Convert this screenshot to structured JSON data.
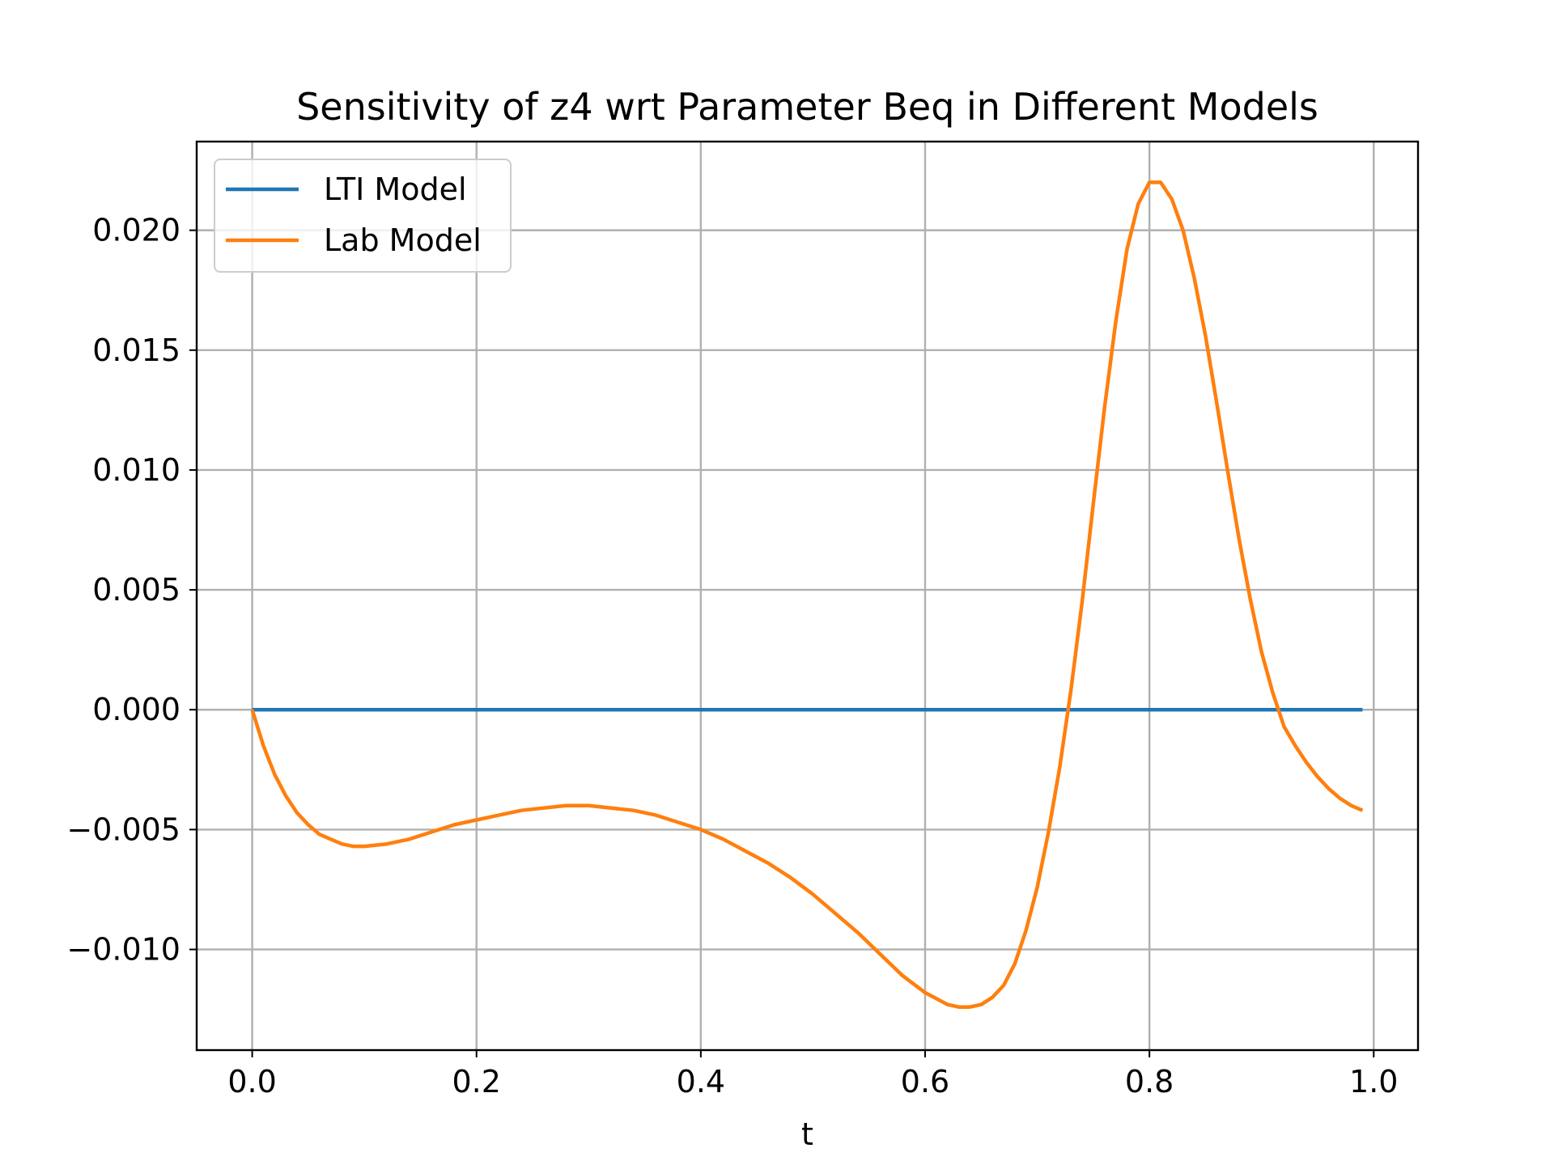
{
  "chart_data": {
    "type": "line",
    "title": "Sensitivity of z4 wrt Parameter Beq in Different Models",
    "xlabel": "t",
    "ylabel": "",
    "xlim": [
      -0.0495,
      1.0395
    ],
    "ylim": [
      -0.0142,
      0.0237
    ],
    "xticks": [
      0.0,
      0.2,
      0.4,
      0.6,
      0.8,
      1.0
    ],
    "xtick_labels": [
      "0.0",
      "0.2",
      "0.4",
      "0.6",
      "0.8",
      "1.0"
    ],
    "yticks": [
      -0.01,
      -0.005,
      0.0,
      0.005,
      0.01,
      0.015,
      0.02
    ],
    "ytick_labels": [
      "−0.010",
      "−0.005",
      "0.000",
      "0.005",
      "0.010",
      "0.015",
      "0.020"
    ],
    "grid": true,
    "legend_position": "top-left",
    "series": [
      {
        "name": "LTI Model",
        "color": "#1f77b4",
        "x": [
          0.0,
          0.99
        ],
        "y": [
          0.0,
          0.0
        ]
      },
      {
        "name": "Lab Model",
        "color": "#ff7f0e",
        "x": [
          0.0,
          0.01,
          0.02,
          0.03,
          0.04,
          0.05,
          0.06,
          0.07,
          0.08,
          0.09,
          0.1,
          0.12,
          0.14,
          0.16,
          0.18,
          0.2,
          0.22,
          0.24,
          0.26,
          0.28,
          0.3,
          0.32,
          0.34,
          0.36,
          0.38,
          0.4,
          0.42,
          0.44,
          0.46,
          0.48,
          0.5,
          0.52,
          0.54,
          0.56,
          0.58,
          0.6,
          0.62,
          0.63,
          0.64,
          0.65,
          0.66,
          0.67,
          0.68,
          0.69,
          0.7,
          0.71,
          0.72,
          0.73,
          0.74,
          0.75,
          0.76,
          0.77,
          0.78,
          0.79,
          0.8,
          0.81,
          0.82,
          0.83,
          0.84,
          0.85,
          0.86,
          0.87,
          0.88,
          0.89,
          0.9,
          0.91,
          0.92,
          0.93,
          0.94,
          0.95,
          0.96,
          0.97,
          0.98,
          0.99
        ],
        "y": [
          0.0,
          -0.0015,
          -0.0027,
          -0.0036,
          -0.0043,
          -0.0048,
          -0.0052,
          -0.0054,
          -0.0056,
          -0.0057,
          -0.0057,
          -0.0056,
          -0.0054,
          -0.0051,
          -0.0048,
          -0.0046,
          -0.0044,
          -0.0042,
          -0.0041,
          -0.004,
          -0.004,
          -0.0041,
          -0.0042,
          -0.0044,
          -0.0047,
          -0.005,
          -0.0054,
          -0.0059,
          -0.0064,
          -0.007,
          -0.0077,
          -0.0085,
          -0.0093,
          -0.0102,
          -0.0111,
          -0.0118,
          -0.0123,
          -0.0124,
          -0.0124,
          -0.0123,
          -0.012,
          -0.0115,
          -0.0106,
          -0.0092,
          -0.0074,
          -0.0051,
          -0.0024,
          0.0008,
          0.0045,
          0.0086,
          0.0126,
          0.0162,
          0.0192,
          0.0211,
          0.022,
          0.022,
          0.0213,
          0.02,
          0.018,
          0.0156,
          0.0128,
          0.0099,
          0.0071,
          0.0046,
          0.0024,
          0.0007,
          -0.0007,
          -0.0015,
          -0.0022,
          -0.0028,
          -0.0033,
          -0.0037,
          -0.004,
          -0.0042
        ]
      }
    ]
  }
}
